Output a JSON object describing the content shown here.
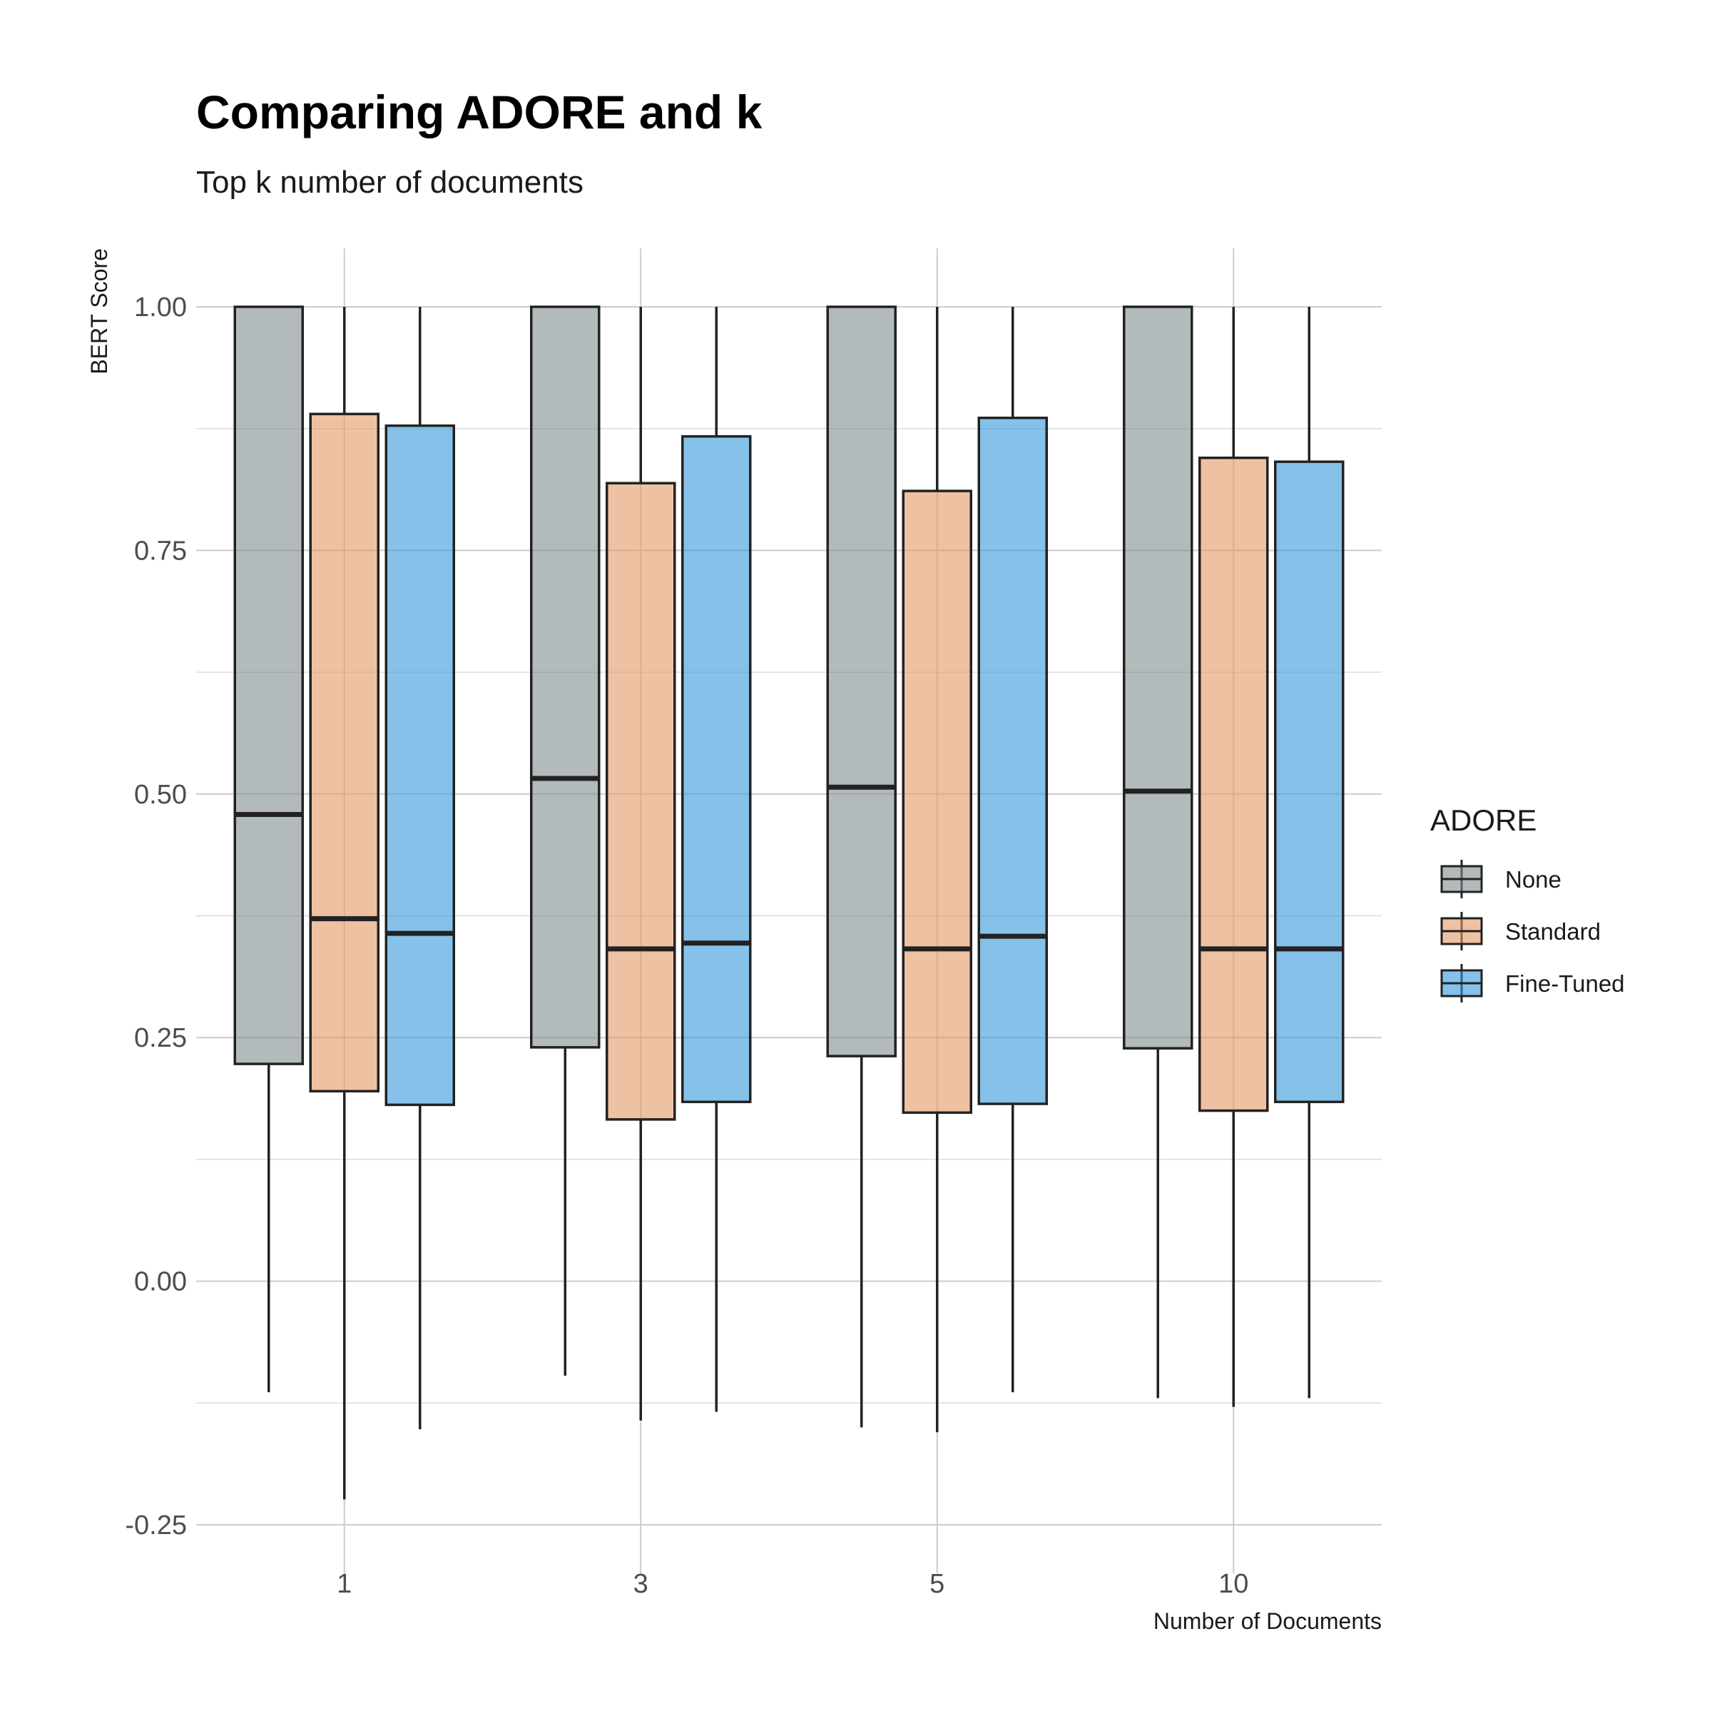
{
  "chart_data": {
    "type": "boxplot",
    "title": "Comparing ADORE and k",
    "subtitle": "Top k number of documents",
    "xlabel": "Number of Documents",
    "ylabel": "BERT Score",
    "categories": [
      "1",
      "3",
      "5",
      "10"
    ],
    "ylim": [
      -0.3,
      1.06
    ],
    "y_ticks": [
      -0.25,
      0.0,
      0.25,
      0.5,
      0.75,
      1.0
    ],
    "y_tick_labels": [
      "-0.25",
      "0.00",
      "0.25",
      "0.50",
      "0.75",
      "1.00"
    ],
    "grid": true,
    "legend": {
      "title": "ADORE",
      "position": "right"
    },
    "series": [
      {
        "name": "None",
        "color": "#7f8c8d",
        "boxes": [
          {
            "category": "1",
            "min": -0.114,
            "q1": 0.223,
            "median": 0.479,
            "q3": 1.0,
            "max": 1.0
          },
          {
            "category": "3",
            "min": -0.097,
            "q1": 0.24,
            "median": 0.516,
            "q3": 1.0,
            "max": 1.0
          },
          {
            "category": "5",
            "min": -0.15,
            "q1": 0.231,
            "median": 0.507,
            "q3": 1.0,
            "max": 1.0
          },
          {
            "category": "10",
            "min": -0.12,
            "q1": 0.239,
            "median": 0.503,
            "q3": 1.0,
            "max": 1.0
          }
        ]
      },
      {
        "name": "Standard",
        "color": "#e59866",
        "boxes": [
          {
            "category": "1",
            "min": -0.224,
            "q1": 0.195,
            "median": 0.372,
            "q3": 0.89,
            "max": 1.0
          },
          {
            "category": "3",
            "min": -0.143,
            "q1": 0.166,
            "median": 0.341,
            "q3": 0.819,
            "max": 1.0
          },
          {
            "category": "5",
            "min": -0.155,
            "q1": 0.173,
            "median": 0.341,
            "q3": 0.811,
            "max": 1.0
          },
          {
            "category": "10",
            "min": -0.129,
            "q1": 0.175,
            "median": 0.341,
            "q3": 0.845,
            "max": 1.0
          }
        ]
      },
      {
        "name": "Fine-Tuned",
        "color": "#3498db",
        "boxes": [
          {
            "category": "1",
            "min": -0.152,
            "q1": 0.181,
            "median": 0.357,
            "q3": 0.878,
            "max": 1.0
          },
          {
            "category": "3",
            "min": -0.134,
            "q1": 0.184,
            "median": 0.347,
            "q3": 0.867,
            "max": 1.0
          },
          {
            "category": "5",
            "min": -0.114,
            "q1": 0.182,
            "median": 0.354,
            "q3": 0.886,
            "max": 1.0
          },
          {
            "category": "10",
            "min": -0.12,
            "q1": 0.184,
            "median": 0.341,
            "q3": 0.841,
            "max": 1.0
          }
        ]
      }
    ],
    "fill_opacity": 0.6
  }
}
